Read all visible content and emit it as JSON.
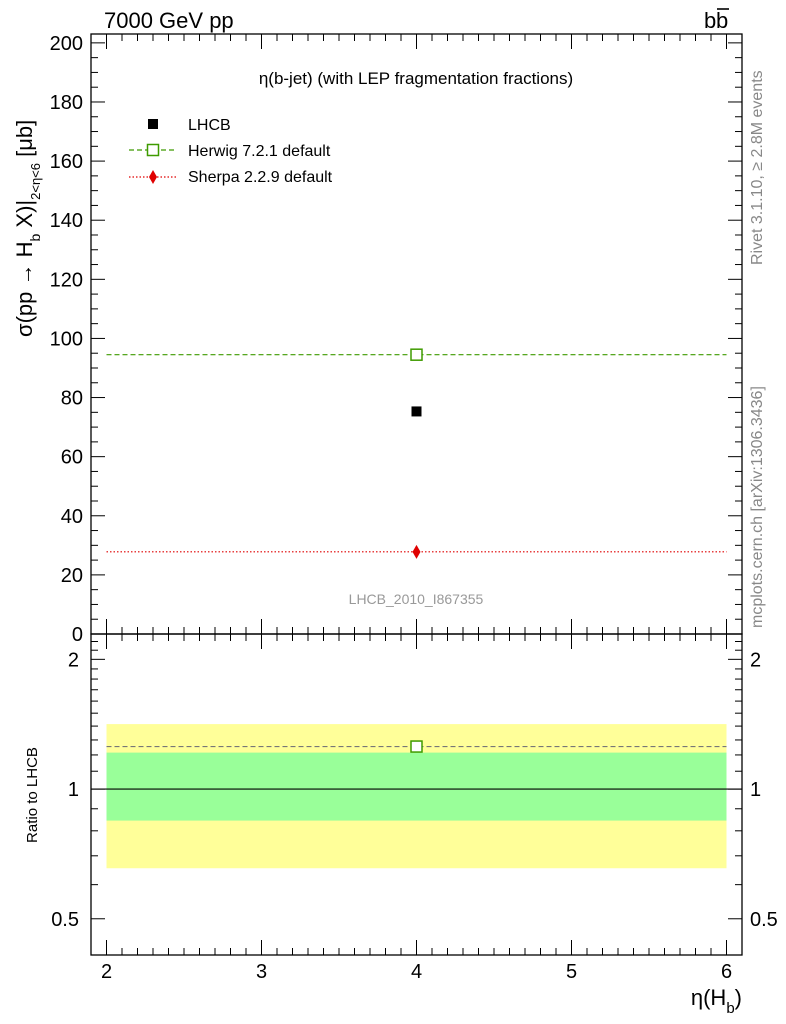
{
  "header": {
    "beam_label": "7000 GeV pp",
    "process_main": "b",
    "process_bar": "b"
  },
  "side_text": {
    "rivet": "Rivet 3.1.10, ≥ 2.8M events",
    "mcplots": "mcplots.cern.ch [arXiv:1306.3436]"
  },
  "chart_data": [
    {
      "type": "scatter",
      "title": "η(b-jet) (with LEP fragmentation fractions)",
      "watermark": "LHCB_2010_I867355",
      "ylabel": {
        "main": "σ(pp → H",
        "sub_b": "b",
        "mid": " X)|",
        "sub_range": "2<η<6",
        "unit": " [μb]"
      },
      "xlim": [
        1.9,
        6.1
      ],
      "ylim": [
        0,
        203
      ],
      "y_ticks": [
        "20",
        "40",
        "60",
        "80",
        "100",
        "120",
        "140",
        "160",
        "180",
        "200"
      ],
      "y_tick_zero": "0",
      "legend_position": "top-left",
      "series": [
        {
          "name": "LHCB",
          "x": [
            4
          ],
          "y": [
            75.3
          ],
          "color": "#000000",
          "marker": "filled-square",
          "line": "none"
        },
        {
          "name": "Herwig 7.2.1 default",
          "x": [
            4
          ],
          "y": [
            94.5
          ],
          "x_range": [
            2,
            6
          ],
          "color": "#3f9b00",
          "marker": "open-square",
          "line": "dashed"
        },
        {
          "name": "Sherpa 2.2.9 default",
          "x": [
            4
          ],
          "y": [
            27.8
          ],
          "x_range": [
            2,
            6
          ],
          "color": "#e00000",
          "marker": "filled-diamond",
          "line": "dotted"
        }
      ]
    },
    {
      "type": "line",
      "ylabel": "Ratio to LHCB",
      "xlabel": {
        "main": "η(H",
        "sub": "b",
        "close": ")"
      },
      "xlim": [
        1.9,
        6.1
      ],
      "x_ticks": [
        "2",
        "3",
        "4",
        "5",
        "6"
      ],
      "ylim": [
        0.412,
        2.29
      ],
      "log_y": true,
      "y_ticks": [
        "0.5",
        "1",
        "2"
      ],
      "reference": 1,
      "bands": [
        {
          "kind": "outer",
          "low": 0.655,
          "high": 1.415,
          "color": "#ffff99"
        },
        {
          "kind": "inner",
          "low": 0.845,
          "high": 1.215,
          "color": "#99ff99"
        }
      ],
      "series": [
        {
          "name": "Herwig 7.2.1 default",
          "x": [
            4
          ],
          "y": [
            1.255
          ],
          "x_range": [
            2,
            6
          ],
          "color": "#3f9b00",
          "marker": "open-square",
          "line": "dashed"
        }
      ]
    }
  ]
}
